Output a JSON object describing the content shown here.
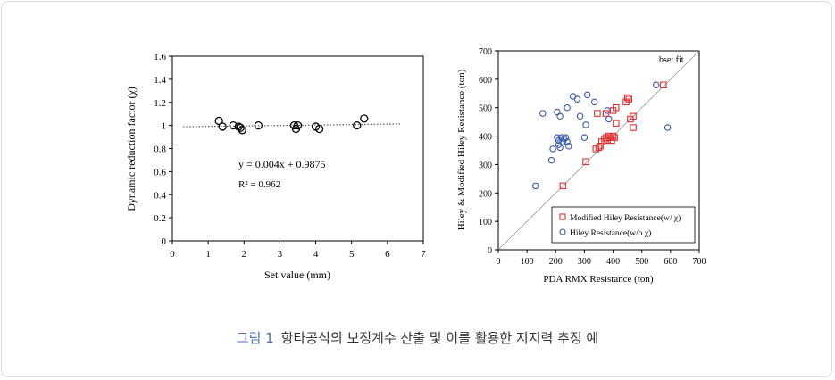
{
  "caption": {
    "figure_label": "그림 1",
    "text": "항타공식의 보정계수 산출 및 이를 활용한 지지력 추정 예"
  },
  "chart_data": [
    {
      "type": "scatter",
      "xlabel": "Set value (mm)",
      "ylabel": "Dynamic reduction factor (χ)",
      "xlim": [
        0,
        7
      ],
      "ylim": [
        0,
        1.6
      ],
      "xticks": [
        "0",
        "1",
        "2",
        "3",
        "4",
        "5",
        "6",
        "7"
      ],
      "yticks": [
        "0",
        "0.2",
        "0.4",
        "0.6",
        "0.8",
        "1",
        "1.2",
        "1.4",
        "1.6"
      ],
      "grid": false,
      "series": [
        {
          "marker": "circle",
          "color": "#000000",
          "x": [
            1.3,
            1.4,
            1.7,
            1.85,
            1.9,
            1.95,
            2.4,
            3.4,
            3.5,
            3.45,
            4.0,
            4.1,
            5.15,
            5.35
          ],
          "y": [
            1.04,
            0.99,
            1.0,
            0.99,
            0.98,
            0.96,
            1.0,
            1.0,
            1.0,
            0.97,
            0.99,
            0.97,
            1.0,
            1.06
          ]
        }
      ],
      "trendline": {
        "x": [
          0.3,
          6.4
        ],
        "y": [
          0.9887,
          1.0131
        ],
        "style": "dotted"
      },
      "annotations": [
        "y = 0.004x + 0.9875",
        "R² = 0.962"
      ]
    },
    {
      "type": "scatter",
      "xlabel": "PDA RMX Resistance (ton)",
      "ylabel": "Hiley & Modified Hiley Resistance (ton)",
      "xlim": [
        0,
        700
      ],
      "ylim": [
        0,
        700
      ],
      "xticks": [
        "0",
        "100",
        "200",
        "300",
        "400",
        "500",
        "600",
        "700"
      ],
      "yticks": [
        "0",
        "100",
        "200",
        "300",
        "400",
        "500",
        "600",
        "700"
      ],
      "grid": false,
      "legend_position": "bottom-right",
      "fit_label": "bset fit",
      "series": [
        {
          "name": "Modified Hiley Resistance(w/ χ)",
          "marker": "square",
          "color": "#e03030",
          "x": [
            225,
            305,
            340,
            350,
            355,
            360,
            370,
            375,
            380,
            385,
            390,
            395,
            400,
            405,
            410,
            345,
            375,
            400,
            410,
            445,
            450,
            455,
            460,
            470,
            470,
            575
          ],
          "y": [
            225,
            310,
            355,
            360,
            365,
            380,
            390,
            395,
            385,
            400,
            395,
            385,
            400,
            395,
            445,
            480,
            480,
            490,
            500,
            520,
            535,
            530,
            460,
            470,
            430,
            580
          ]
        },
        {
          "name": "Hiley Resistance(w/o χ)",
          "marker": "circle",
          "color": "#3a5ab0",
          "x": [
            130,
            155,
            185,
            190,
            205,
            210,
            210,
            215,
            220,
            225,
            230,
            235,
            240,
            245,
            205,
            215,
            240,
            260,
            275,
            285,
            300,
            305,
            310,
            335,
            380,
            385,
            550,
            590
          ],
          "y": [
            225,
            480,
            315,
            355,
            395,
            385,
            370,
            360,
            395,
            380,
            390,
            395,
            380,
            365,
            485,
            470,
            500,
            540,
            530,
            470,
            395,
            440,
            545,
            520,
            490,
            460,
            580,
            430
          ]
        }
      ]
    }
  ]
}
